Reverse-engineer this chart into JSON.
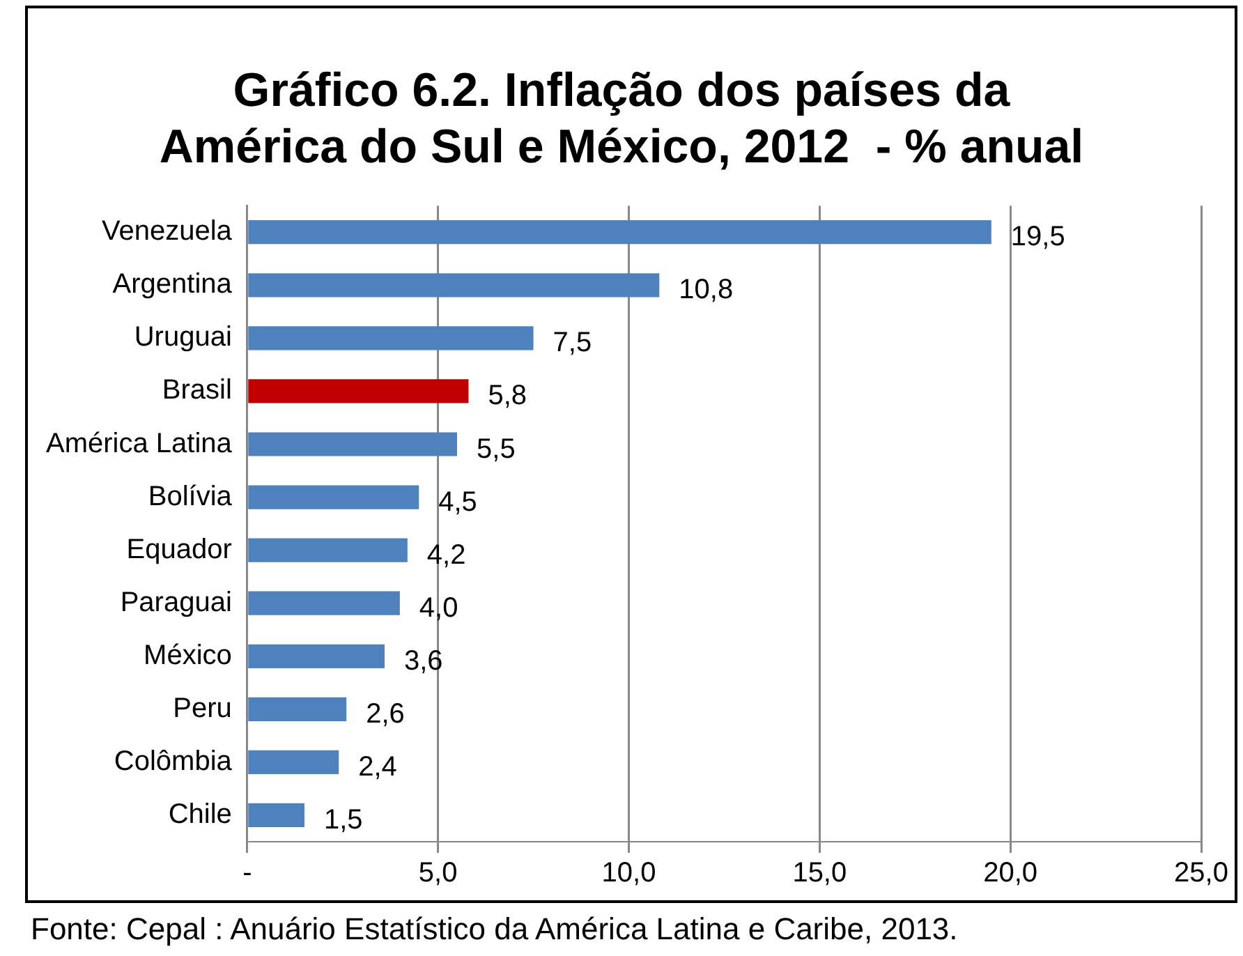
{
  "chart_data": {
    "type": "bar",
    "orientation": "horizontal",
    "title": "Gráfico 6.2. Inflação dos países da América do Sul e México, 2012  - % anual",
    "categories": [
      "Venezuela",
      "Argentina",
      "Uruguai",
      "Brasil",
      "América Latina",
      "Bolívia",
      "Equador",
      "Paraguai",
      "México",
      "Peru",
      "Colômbia",
      "Chile"
    ],
    "values": [
      19.5,
      10.8,
      7.5,
      5.8,
      5.5,
      4.5,
      4.2,
      4.0,
      3.6,
      2.6,
      2.4,
      1.5
    ],
    "colors": [
      "#4f81bd",
      "#4f81bd",
      "#4f81bd",
      "#c00000",
      "#4f81bd",
      "#4f81bd",
      "#4f81bd",
      "#4f81bd",
      "#4f81bd",
      "#4f81bd",
      "#4f81bd",
      "#4f81bd"
    ],
    "value_labels": [
      "19,5",
      "10,8",
      "7,5",
      "5,8",
      "5,5",
      "4,5",
      "4,2",
      "4,0",
      "3,6",
      "2,6",
      "2,4",
      "1,5"
    ],
    "xlim": [
      0,
      25
    ],
    "xticks": [
      {
        "value": 0,
        "label": "-"
      },
      {
        "value": 5,
        "label": "5,0"
      },
      {
        "value": 10,
        "label": "10,0"
      },
      {
        "value": 15,
        "label": "15,0"
      },
      {
        "value": 20,
        "label": "20,0"
      },
      {
        "value": 25,
        "label": "25,0"
      }
    ],
    "grid": "x",
    "legend": false,
    "annotations": [
      "Fonte: Cepal : Anuário Estatístico da  América Latina e Caribe, 2013."
    ]
  }
}
